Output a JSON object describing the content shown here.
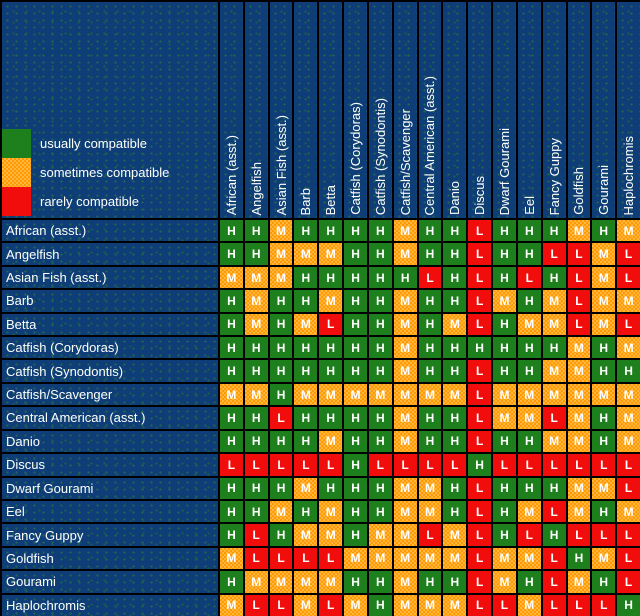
{
  "legend": {
    "items": [
      {
        "code": "H",
        "label": "usually compatible",
        "color": "#1d801d",
        "style": "solid"
      },
      {
        "code": "M",
        "label": "sometimes compatible",
        "color": "#ff9a00",
        "style": "dither"
      },
      {
        "code": "L",
        "label": "rarely compatible",
        "color": "#f20d0d",
        "style": "solid"
      }
    ]
  },
  "chart_data": {
    "type": "heatmap",
    "legend_position": "top-left",
    "grid": "on",
    "cell_codes": {
      "H": "usually compatible",
      "M": "sometimes compatible",
      "L": "rarely compatible"
    },
    "cell_colors": {
      "H": "#1d801d",
      "M": "#ff9a00",
      "L": "#f20d0d"
    },
    "columns": [
      "African (asst.)",
      "Angelfish",
      "Asian Fish (asst.)",
      "Barb",
      "Betta",
      "Catfish (Corydoras)",
      "Catfish (Synodontis)",
      "Catfish/Scavenger",
      "Central American (asst.)",
      "Danio",
      "Discus",
      "Dwarf Gourami",
      "Eel",
      "Fancy Guppy",
      "Goldfish",
      "Gourami",
      "Haplochromis"
    ],
    "rows": [
      "African (asst.)",
      "Angelfish",
      "Asian Fish (asst.)",
      "Barb",
      "Betta",
      "Catfish (Corydoras)",
      "Catfish (Synodontis)",
      "Catfish/Scavenger",
      "Central American (asst.)",
      "Danio",
      "Discus",
      "Dwarf Gourami",
      "Eel",
      "Fancy Guppy",
      "Goldfish",
      "Gourami",
      "Haplochromis"
    ],
    "values": [
      [
        "H",
        "H",
        "M",
        "H",
        "H",
        "H",
        "H",
        "M",
        "H",
        "H",
        "L",
        "H",
        "H",
        "H",
        "M",
        "H",
        "M"
      ],
      [
        "H",
        "H",
        "M",
        "M",
        "M",
        "H",
        "H",
        "M",
        "H",
        "H",
        "L",
        "H",
        "H",
        "L",
        "L",
        "M",
        "L"
      ],
      [
        "M",
        "M",
        "M",
        "H",
        "H",
        "H",
        "H",
        "H",
        "L",
        "H",
        "L",
        "H",
        "L",
        "H",
        "L",
        "M",
        "L"
      ],
      [
        "H",
        "M",
        "H",
        "H",
        "M",
        "H",
        "H",
        "M",
        "H",
        "H",
        "L",
        "M",
        "H",
        "M",
        "L",
        "M",
        "M"
      ],
      [
        "H",
        "M",
        "H",
        "M",
        "L",
        "H",
        "H",
        "M",
        "H",
        "M",
        "L",
        "H",
        "M",
        "M",
        "L",
        "M",
        "L"
      ],
      [
        "H",
        "H",
        "H",
        "H",
        "H",
        "H",
        "H",
        "M",
        "H",
        "H",
        "H",
        "H",
        "H",
        "H",
        "M",
        "H",
        "M"
      ],
      [
        "H",
        "H",
        "H",
        "H",
        "H",
        "H",
        "H",
        "M",
        "H",
        "H",
        "L",
        "H",
        "H",
        "M",
        "M",
        "H",
        "H"
      ],
      [
        "M",
        "M",
        "H",
        "M",
        "M",
        "M",
        "M",
        "M",
        "M",
        "M",
        "L",
        "M",
        "M",
        "M",
        "M",
        "M",
        "M"
      ],
      [
        "H",
        "H",
        "L",
        "H",
        "H",
        "H",
        "H",
        "M",
        "H",
        "H",
        "L",
        "M",
        "M",
        "L",
        "M",
        "H",
        "M"
      ],
      [
        "H",
        "H",
        "H",
        "H",
        "M",
        "H",
        "H",
        "M",
        "H",
        "H",
        "L",
        "H",
        "H",
        "M",
        "M",
        "H",
        "M"
      ],
      [
        "L",
        "L",
        "L",
        "L",
        "L",
        "H",
        "L",
        "L",
        "L",
        "L",
        "H",
        "L",
        "L",
        "L",
        "L",
        "L",
        "L"
      ],
      [
        "H",
        "H",
        "H",
        "M",
        "H",
        "H",
        "H",
        "M",
        "M",
        "H",
        "L",
        "H",
        "H",
        "H",
        "M",
        "M",
        "L"
      ],
      [
        "H",
        "H",
        "M",
        "H",
        "M",
        "H",
        "H",
        "M",
        "M",
        "H",
        "L",
        "H",
        "M",
        "L",
        "M",
        "H",
        "M"
      ],
      [
        "H",
        "L",
        "H",
        "M",
        "M",
        "H",
        "M",
        "M",
        "L",
        "M",
        "L",
        "H",
        "L",
        "H",
        "L",
        "L",
        "L"
      ],
      [
        "M",
        "L",
        "L",
        "L",
        "L",
        "M",
        "M",
        "M",
        "M",
        "M",
        "L",
        "M",
        "M",
        "L",
        "H",
        "M",
        "L"
      ],
      [
        "H",
        "M",
        "M",
        "M",
        "M",
        "H",
        "H",
        "M",
        "H",
        "H",
        "L",
        "M",
        "H",
        "L",
        "M",
        "H",
        "L"
      ],
      [
        "M",
        "L",
        "L",
        "M",
        "L",
        "M",
        "H",
        "M",
        "M",
        "M",
        "L",
        "L",
        "M",
        "L",
        "L",
        "L",
        "H"
      ]
    ]
  },
  "colors": {
    "background": "#0e3d77",
    "background_dot": "#21684f",
    "grid_line": "#000000",
    "text": "#ffffff"
  }
}
